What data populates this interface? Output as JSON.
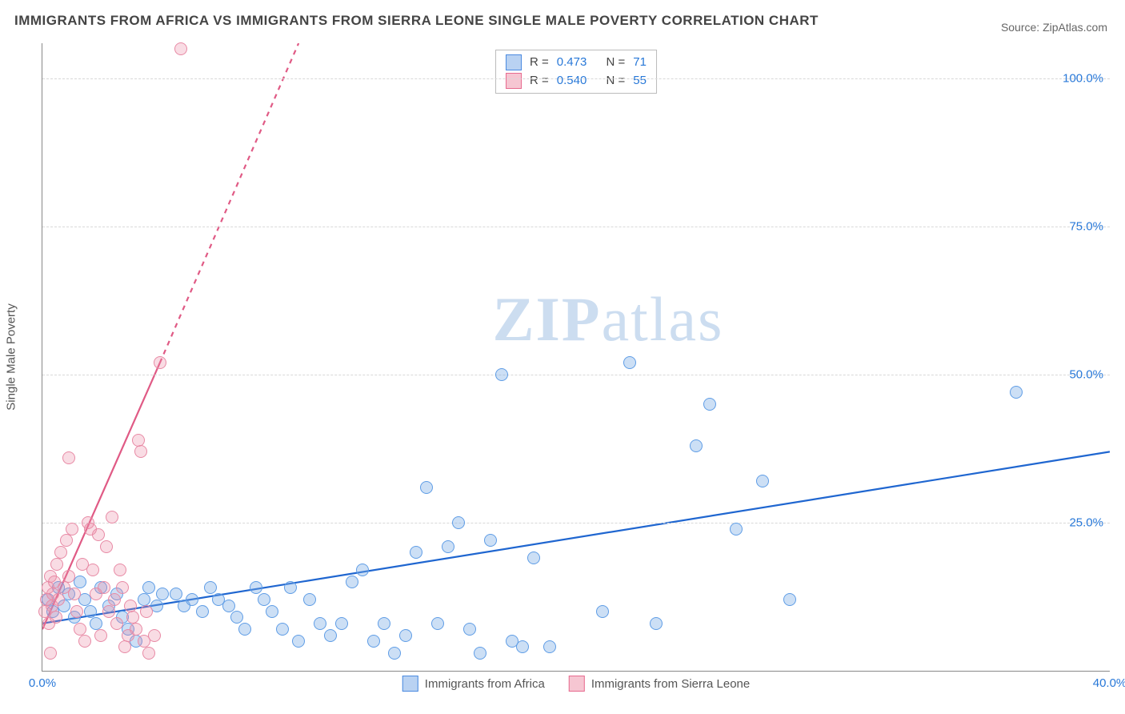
{
  "title": "IMMIGRANTS FROM AFRICA VS IMMIGRANTS FROM SIERRA LEONE SINGLE MALE POVERTY CORRELATION CHART",
  "source": "Source: ZipAtlas.com",
  "watermark": {
    "zip": "ZIP",
    "atlas": "atlas"
  },
  "chart": {
    "type": "scatter",
    "xlim": [
      0,
      40
    ],
    "ylim": [
      0,
      106
    ],
    "xticks": [
      {
        "v": 0,
        "label": "0.0%"
      },
      {
        "v": 40,
        "label": "40.0%"
      }
    ],
    "yticks": [
      {
        "v": 25,
        "label": "25.0%"
      },
      {
        "v": 50,
        "label": "50.0%"
      },
      {
        "v": 75,
        "label": "75.0%"
      },
      {
        "v": 100,
        "label": "100.0%"
      }
    ],
    "ylabel": "Single Male Poverty",
    "grid_color": "#d8d8d8",
    "background_color": "#ffffff",
    "series": [
      {
        "id": "africa",
        "label": "Immigrants from Africa",
        "swatch_fill": "#b9d2f2",
        "swatch_border": "#4a8ae0",
        "point_fill": "rgba(120,170,230,0.38)",
        "point_border": "#5f9de6",
        "trend_color": "#1f66d0",
        "trend": {
          "x1": 0,
          "y1": 8,
          "x2": 40,
          "y2": 37,
          "dash": "none"
        },
        "trend_extra": null,
        "R": "0.473",
        "N": "71",
        "points": [
          [
            0.2,
            12
          ],
          [
            0.4,
            10
          ],
          [
            0.6,
            14
          ],
          [
            0.8,
            11
          ],
          [
            1.0,
            13
          ],
          [
            1.2,
            9
          ],
          [
            1.4,
            15
          ],
          [
            1.6,
            12
          ],
          [
            1.8,
            10
          ],
          [
            2.0,
            8
          ],
          [
            2.2,
            14
          ],
          [
            2.5,
            11
          ],
          [
            2.8,
            13
          ],
          [
            3.0,
            9
          ],
          [
            3.2,
            7
          ],
          [
            3.5,
            5
          ],
          [
            3.8,
            12
          ],
          [
            4.0,
            14
          ],
          [
            4.3,
            11
          ],
          [
            4.5,
            13
          ],
          [
            5.0,
            13
          ],
          [
            5.3,
            11
          ],
          [
            5.6,
            12
          ],
          [
            6.0,
            10
          ],
          [
            6.3,
            14
          ],
          [
            6.6,
            12
          ],
          [
            7.0,
            11
          ],
          [
            7.3,
            9
          ],
          [
            7.6,
            7
          ],
          [
            8.0,
            14
          ],
          [
            8.3,
            12
          ],
          [
            8.6,
            10
          ],
          [
            9.0,
            7
          ],
          [
            9.3,
            14
          ],
          [
            9.6,
            5
          ],
          [
            10.0,
            12
          ],
          [
            10.4,
            8
          ],
          [
            10.8,
            6
          ],
          [
            11.2,
            8
          ],
          [
            11.6,
            15
          ],
          [
            12.0,
            17
          ],
          [
            12.4,
            5
          ],
          [
            12.8,
            8
          ],
          [
            13.2,
            3
          ],
          [
            13.6,
            6
          ],
          [
            14.0,
            20
          ],
          [
            14.4,
            31
          ],
          [
            14.8,
            8
          ],
          [
            15.2,
            21
          ],
          [
            15.6,
            25
          ],
          [
            16.0,
            7
          ],
          [
            16.4,
            3
          ],
          [
            16.8,
            22
          ],
          [
            17.2,
            50
          ],
          [
            17.6,
            5
          ],
          [
            18.0,
            4
          ],
          [
            18.4,
            19
          ],
          [
            19.0,
            4
          ],
          [
            21.0,
            10
          ],
          [
            22.0,
            52
          ],
          [
            23.0,
            8
          ],
          [
            24.5,
            38
          ],
          [
            25.0,
            45
          ],
          [
            26.0,
            24
          ],
          [
            27.0,
            32
          ],
          [
            28.0,
            12
          ],
          [
            36.5,
            47
          ]
        ]
      },
      {
        "id": "sierra",
        "label": "Immigrants from Sierra Leone",
        "swatch_fill": "#f6c6d2",
        "swatch_border": "#e76a8f",
        "point_fill": "rgba(235,140,165,0.30)",
        "point_border": "#e88aa5",
        "trend_color": "#e05a85",
        "trend": {
          "x1": 0,
          "y1": 7,
          "x2": 4.4,
          "y2": 52,
          "dash": "none"
        },
        "trend_extra": {
          "x1": 4.4,
          "y1": 52,
          "x2": 9.6,
          "y2": 106,
          "dash": "6,6"
        },
        "R": "0.540",
        "N": "55",
        "points": [
          [
            0.1,
            10
          ],
          [
            0.15,
            12
          ],
          [
            0.2,
            14
          ],
          [
            0.25,
            8
          ],
          [
            0.3,
            16
          ],
          [
            0.35,
            11
          ],
          [
            0.4,
            13
          ],
          [
            0.45,
            15
          ],
          [
            0.5,
            9
          ],
          [
            0.55,
            18
          ],
          [
            0.6,
            12
          ],
          [
            0.7,
            20
          ],
          [
            0.8,
            14
          ],
          [
            0.9,
            22
          ],
          [
            1.0,
            16
          ],
          [
            1.1,
            24
          ],
          [
            1.2,
            13
          ],
          [
            1.3,
            10
          ],
          [
            1.4,
            7
          ],
          [
            1.5,
            18
          ],
          [
            1.6,
            5
          ],
          [
            1.7,
            25
          ],
          [
            1.8,
            24
          ],
          [
            1.9,
            17
          ],
          [
            2.0,
            13
          ],
          [
            2.1,
            23
          ],
          [
            2.2,
            6
          ],
          [
            2.3,
            14
          ],
          [
            2.4,
            21
          ],
          [
            2.5,
            10
          ],
          [
            2.6,
            26
          ],
          [
            2.7,
            12
          ],
          [
            2.8,
            8
          ],
          [
            2.9,
            17
          ],
          [
            3.0,
            14
          ],
          [
            3.1,
            4
          ],
          [
            3.2,
            6
          ],
          [
            3.3,
            11
          ],
          [
            3.4,
            9
          ],
          [
            3.5,
            7
          ],
          [
            3.6,
            39
          ],
          [
            3.7,
            37
          ],
          [
            3.8,
            5
          ],
          [
            3.9,
            10
          ],
          [
            4.0,
            3
          ],
          [
            4.2,
            6
          ],
          [
            4.4,
            52
          ],
          [
            1.0,
            36
          ],
          [
            0.3,
            3
          ],
          [
            5.2,
            105
          ]
        ]
      }
    ],
    "legend_top": {
      "R_label": "R  =",
      "N_label": "N  ="
    }
  }
}
